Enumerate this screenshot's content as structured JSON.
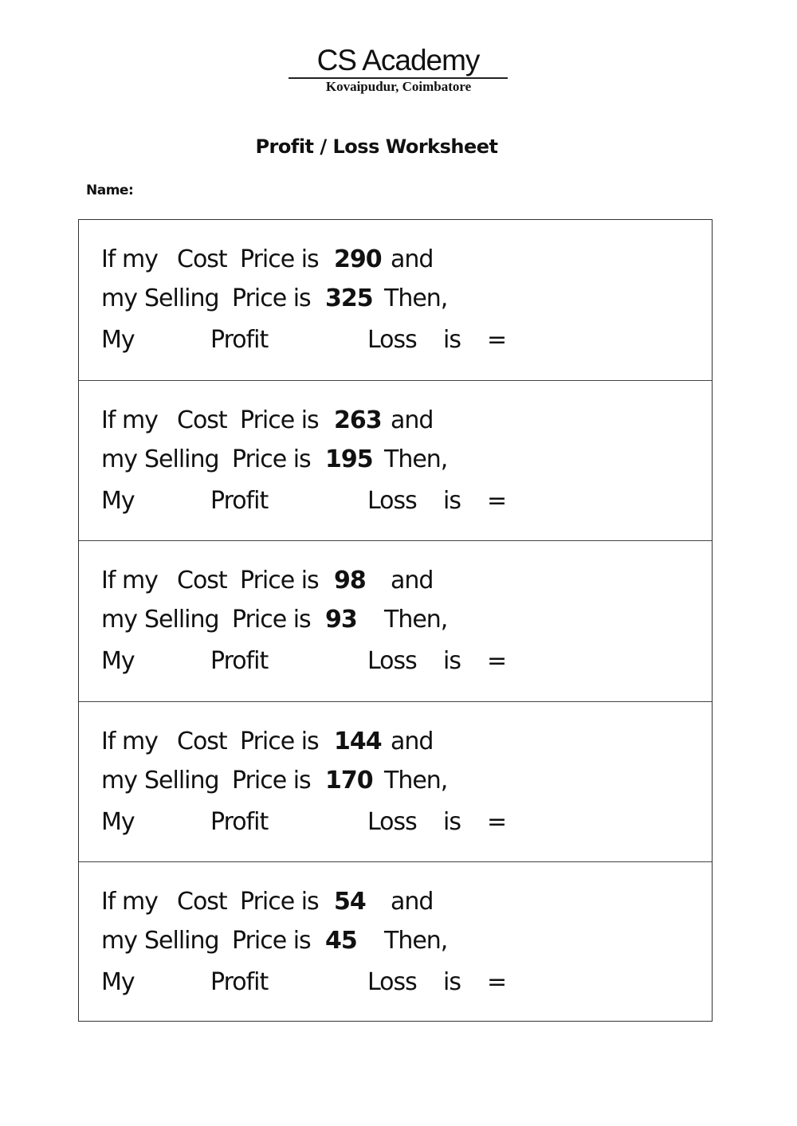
{
  "header": {
    "brand": "CS Academy",
    "location": "Kovaipudur, Coimbatore"
  },
  "title": "Profit / Loss Worksheet",
  "name_label": "Name:",
  "labels": {
    "if_my": "If my",
    "cost": "Cost",
    "price_is": "Price is",
    "and": "and",
    "my": "my",
    "selling": "Selling",
    "then": "Then,",
    "my_cap": "My",
    "profit": "Profit",
    "loss": "Loss",
    "is": "is",
    "equals": "="
  },
  "questions": [
    {
      "cost_price": "290",
      "selling_price": "325"
    },
    {
      "cost_price": "263",
      "selling_price": "195"
    },
    {
      "cost_price": "98",
      "selling_price": "93"
    },
    {
      "cost_price": "144",
      "selling_price": "170"
    },
    {
      "cost_price": "54",
      "selling_price": "45"
    }
  ]
}
